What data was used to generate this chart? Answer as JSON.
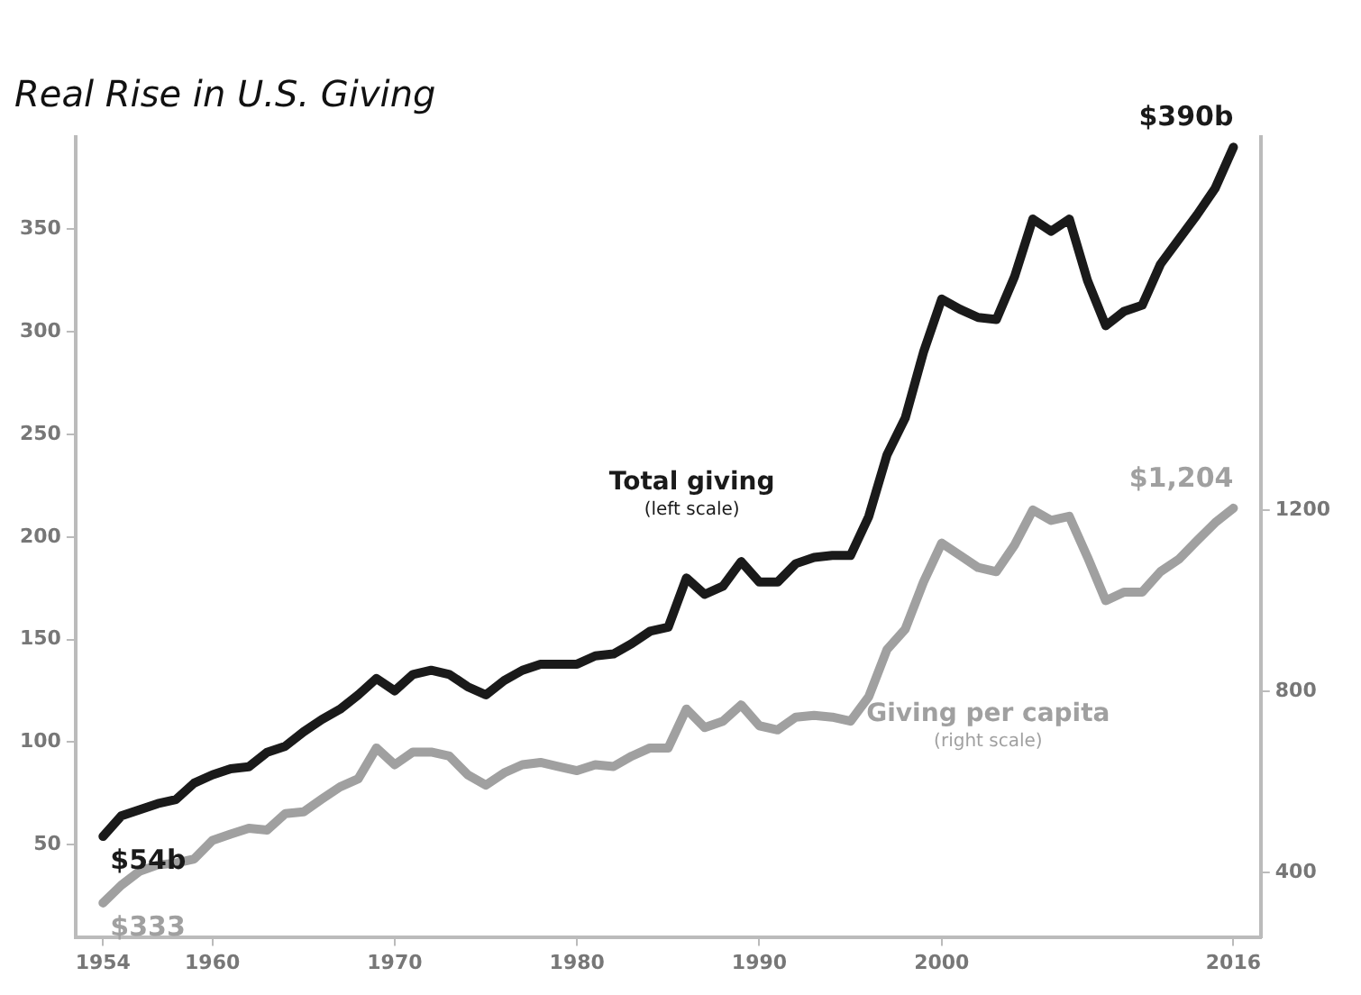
{
  "chart_data": {
    "type": "line",
    "title": "Real Rise in U.S. Giving",
    "annotations": [
      "(left scale)",
      "(right scale)"
    ],
    "x": [
      1954,
      1955,
      1956,
      1957,
      1958,
      1959,
      1960,
      1961,
      1962,
      1963,
      1964,
      1965,
      1966,
      1967,
      1968,
      1969,
      1970,
      1971,
      1972,
      1973,
      1974,
      1975,
      1976,
      1977,
      1978,
      1979,
      1980,
      1981,
      1982,
      1983,
      1984,
      1985,
      1986,
      1987,
      1988,
      1989,
      1990,
      1991,
      1992,
      1993,
      1994,
      1995,
      1996,
      1997,
      1998,
      1999,
      2000,
      2001,
      2002,
      2003,
      2004,
      2005,
      2006,
      2007,
      2008,
      2009,
      2010,
      2011,
      2012,
      2013,
      2014,
      2015,
      2016
    ],
    "series": [
      {
        "name": "Total giving",
        "color": "#1a1a1a",
        "values": [
          54,
          64,
          67,
          70,
          72,
          80,
          84,
          87,
          88,
          95,
          98,
          105,
          111,
          116,
          123,
          131,
          125,
          133,
          135,
          133,
          127,
          123,
          130,
          135,
          138,
          138,
          138,
          142,
          143,
          148,
          154,
          156,
          180,
          172,
          176,
          188,
          178,
          178,
          187,
          190,
          191,
          191,
          210,
          240,
          258,
          290,
          316,
          311,
          307,
          306,
          327,
          355,
          349,
          355,
          325,
          303,
          310,
          313,
          333,
          345,
          357,
          370,
          390
        ],
        "value_labels": [
          "$54b",
          null,
          null,
          null,
          null,
          null,
          null,
          null,
          null,
          null,
          null,
          null,
          null,
          null,
          null,
          null,
          null,
          null,
          null,
          null,
          null,
          null,
          null,
          null,
          null,
          null,
          null,
          null,
          null,
          null,
          null,
          null,
          null,
          null,
          null,
          null,
          null,
          null,
          null,
          null,
          null,
          null,
          null,
          null,
          null,
          null,
          null,
          null,
          null,
          null,
          null,
          null,
          null,
          null,
          null,
          null,
          null,
          null,
          null,
          null,
          null,
          null,
          "$390b"
        ]
      },
      {
        "name": "Giving per capita",
        "color": "#a0a0a0",
        "axis": "y2",
        "values": [
          333,
          372,
          403,
          417,
          421,
          430,
          471,
          485,
          498,
          494,
          530,
          534,
          562,
          589,
          607,
          675,
          638,
          666,
          666,
          657,
          616,
          593,
          620,
          638,
          643,
          634,
          625,
          638,
          634,
          657,
          675,
          675,
          761,
          720,
          734,
          770,
          724,
          715,
          743,
          747,
          743,
          734,
          788,
          892,
          937,
          1041,
          1127,
          1100,
          1073,
          1064,
          1123,
          1200,
          1177,
          1186,
          1096,
          1000,
          1019,
          1019,
          1064,
          1091,
          1132,
          1172,
          1204
        ],
        "value_labels": [
          "$333",
          null,
          null,
          null,
          null,
          null,
          null,
          null,
          null,
          null,
          null,
          null,
          null,
          null,
          null,
          null,
          null,
          null,
          null,
          null,
          null,
          null,
          null,
          null,
          null,
          null,
          null,
          null,
          null,
          null,
          null,
          null,
          null,
          null,
          null,
          null,
          null,
          null,
          null,
          null,
          null,
          null,
          null,
          null,
          null,
          null,
          null,
          null,
          null,
          null,
          null,
          null,
          null,
          null,
          null,
          null,
          null,
          null,
          null,
          null,
          null,
          null,
          "$1,204"
        ]
      }
    ],
    "xlim": [
      1952.5,
      2017.5
    ],
    "xticks": [
      1954,
      1960,
      1970,
      1980,
      1990,
      2000,
      2016
    ],
    "ylim": [
      5,
      395
    ],
    "yticks": [
      50,
      100,
      150,
      200,
      250,
      300,
      350
    ],
    "y2lim": [
      258,
      2023
    ],
    "y2ticks": [
      400,
      800,
      1200
    ],
    "legend": false,
    "line_style": "solid",
    "marker": "none"
  }
}
